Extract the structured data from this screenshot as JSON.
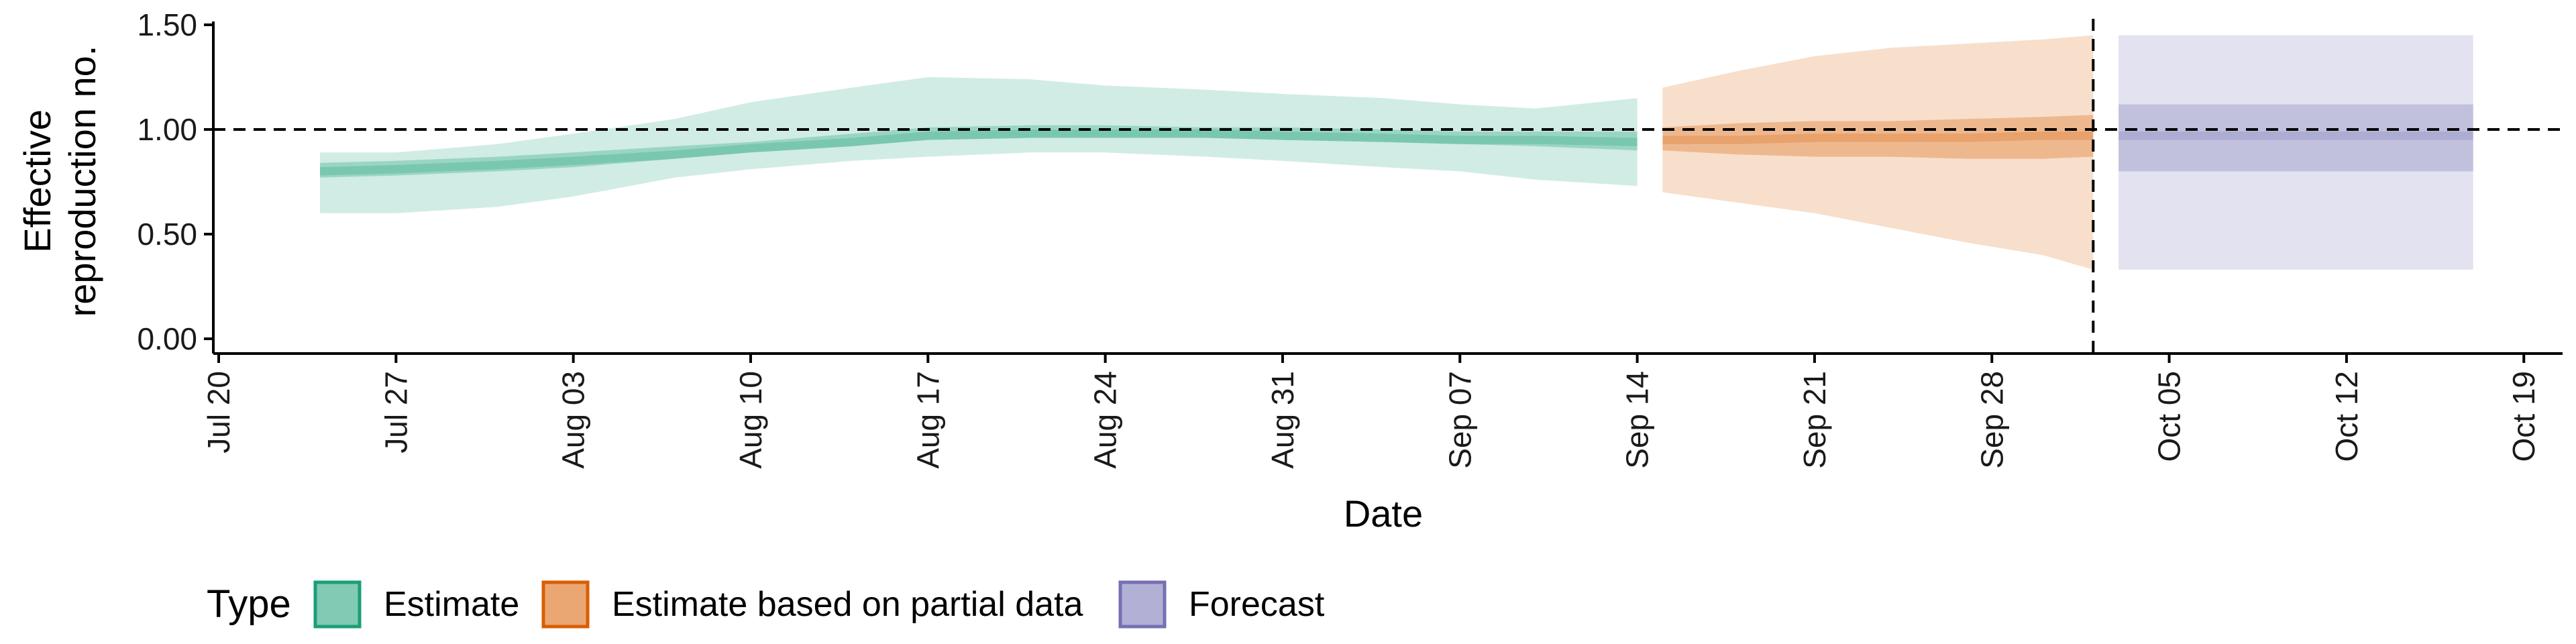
{
  "chart_data": {
    "type": "area",
    "xlabel": "Date",
    "ylabel_lines": [
      "Effective",
      "reproduction no."
    ],
    "ylim": [
      0,
      1.5
    ],
    "yticks": [
      0,
      0.5,
      1.0,
      1.5
    ],
    "ytick_labels": [
      "0.00",
      "0.50",
      "1.00",
      "1.50"
    ],
    "xlim": [
      "2020-07-20",
      "2020-10-20"
    ],
    "xticks": [
      "2020-07-20",
      "2020-07-27",
      "2020-08-03",
      "2020-08-10",
      "2020-08-17",
      "2020-08-24",
      "2020-08-31",
      "2020-09-07",
      "2020-09-14",
      "2020-09-21",
      "2020-09-28",
      "2020-10-05",
      "2020-10-12",
      "2020-10-19"
    ],
    "xtick_labels": [
      "Jul 20",
      "Jul 27",
      "Aug 03",
      "Aug 10",
      "Aug 17",
      "Aug 24",
      "Aug 31",
      "Sep 07",
      "Sep 14",
      "Sep 21",
      "Sep 28",
      "Oct 05",
      "Oct 12",
      "Oct 19"
    ],
    "reference_line_y": 1.0,
    "forecast_start": "2020-10-02",
    "grid": false,
    "legend_position": "bottom",
    "legend_title": "Type",
    "series": [
      {
        "name": "Estimate",
        "color": "#1b9e77",
        "x": [
          "2020-07-24",
          "2020-07-27",
          "2020-07-31",
          "2020-08-03",
          "2020-08-07",
          "2020-08-10",
          "2020-08-14",
          "2020-08-17",
          "2020-08-21",
          "2020-08-24",
          "2020-08-28",
          "2020-08-31",
          "2020-09-04",
          "2020-09-07",
          "2020-09-10",
          "2020-09-14"
        ],
        "median": [
          0.8,
          0.81,
          0.83,
          0.85,
          0.88,
          0.91,
          0.94,
          0.97,
          0.98,
          0.98,
          0.98,
          0.97,
          0.96,
          0.95,
          0.95,
          0.94
        ],
        "lower_50": [
          0.77,
          0.78,
          0.8,
          0.82,
          0.86,
          0.89,
          0.92,
          0.95,
          0.96,
          0.96,
          0.96,
          0.95,
          0.94,
          0.93,
          0.92,
          0.9
        ],
        "upper_50": [
          0.84,
          0.85,
          0.87,
          0.89,
          0.92,
          0.94,
          0.98,
          1.01,
          1.02,
          1.02,
          1.01,
          1.01,
          1.0,
          0.99,
          0.99,
          0.99
        ],
        "lower_90": [
          0.6,
          0.6,
          0.63,
          0.68,
          0.77,
          0.81,
          0.85,
          0.87,
          0.89,
          0.89,
          0.87,
          0.85,
          0.82,
          0.8,
          0.76,
          0.73
        ],
        "upper_90": [
          0.89,
          0.89,
          0.93,
          0.98,
          1.05,
          1.13,
          1.2,
          1.25,
          1.24,
          1.21,
          1.19,
          1.17,
          1.15,
          1.12,
          1.1,
          1.15
        ]
      },
      {
        "name": "Estimate based on partial data",
        "color": "#d95f02",
        "x": [
          "2020-09-15",
          "2020-09-18",
          "2020-09-21",
          "2020-09-24",
          "2020-09-27",
          "2020-09-30",
          "2020-10-02"
        ],
        "median": [
          0.95,
          0.95,
          0.96,
          0.96,
          0.96,
          0.97,
          0.97
        ],
        "lower_50": [
          0.9,
          0.88,
          0.87,
          0.87,
          0.86,
          0.86,
          0.87
        ],
        "upper_50": [
          1.01,
          1.03,
          1.04,
          1.04,
          1.05,
          1.06,
          1.07
        ],
        "lower_90": [
          0.7,
          0.65,
          0.6,
          0.53,
          0.46,
          0.4,
          0.33
        ],
        "upper_90": [
          1.2,
          1.28,
          1.35,
          1.39,
          1.41,
          1.43,
          1.45
        ]
      },
      {
        "name": "Forecast",
        "color": "#7570b3",
        "x": [
          "2020-10-03",
          "2020-10-17"
        ],
        "median": [
          0.97,
          0.97
        ],
        "lower_50": [
          0.8,
          0.8
        ],
        "upper_50": [
          1.12,
          1.12
        ],
        "lower_90": [
          0.33,
          0.33
        ],
        "upper_90": [
          1.45,
          1.45
        ]
      }
    ]
  }
}
